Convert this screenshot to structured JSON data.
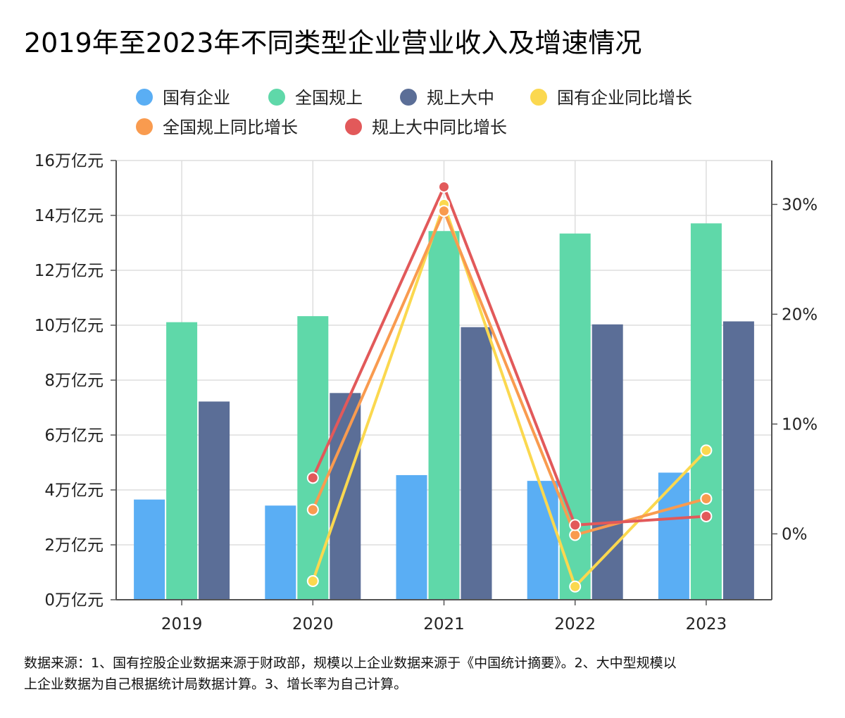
{
  "chart_data": {
    "type": "bar",
    "title": "2019年至2023年不同类型企业营业收入及增速情况",
    "categories": [
      "2019",
      "2020",
      "2021",
      "2022",
      "2023"
    ],
    "y_left": {
      "ylim": [
        0,
        16
      ],
      "ticks": [
        0,
        2,
        4,
        6,
        8,
        10,
        12,
        14,
        16
      ],
      "tick_labels": [
        "0万亿元",
        "2万亿元",
        "4万亿元",
        "6万亿元",
        "8万亿元",
        "10万亿元",
        "12万亿元",
        "14万亿元",
        "16万亿元"
      ]
    },
    "y_right": {
      "ylim": [
        -6,
        34
      ],
      "ticks": [
        0,
        10,
        20,
        30
      ],
      "tick_labels": [
        "0%",
        "10%",
        "20%",
        "30%"
      ]
    },
    "grid": true,
    "legend_position": "top",
    "bar_series": [
      {
        "name": "国有企业",
        "color": "#5aaef4",
        "values": [
          3.65,
          3.43,
          4.54,
          4.33,
          4.63
        ]
      },
      {
        "name": "全国规上",
        "color": "#5fd8a9",
        "values": [
          10.11,
          10.33,
          13.43,
          13.34,
          13.71
        ]
      },
      {
        "name": "规上大中",
        "color": "#5b6e97",
        "values": [
          7.22,
          7.53,
          9.93,
          10.03,
          10.14
        ]
      }
    ],
    "line_series": [
      {
        "name": "国有企业同比增长",
        "color": "#fbd84f",
        "values": [
          null,
          -4.3,
          30.0,
          -4.8,
          7.6
        ]
      },
      {
        "name": "全国规上同比增长",
        "color": "#f99b4f",
        "values": [
          null,
          2.2,
          29.4,
          -0.1,
          3.2
        ]
      },
      {
        "name": "规上大中同比增长",
        "color": "#e2595a",
        "values": [
          null,
          5.1,
          31.6,
          0.8,
          1.6
        ]
      }
    ],
    "source_lines": [
      "数据来源：1、国有控股企业数据来源于财政部，规模以上企业数据来源于《中国统计摘要》。2、大中型规模以",
      "上企业数据为自己根据统计局数据计算。3、增长率为自己计算。"
    ]
  }
}
